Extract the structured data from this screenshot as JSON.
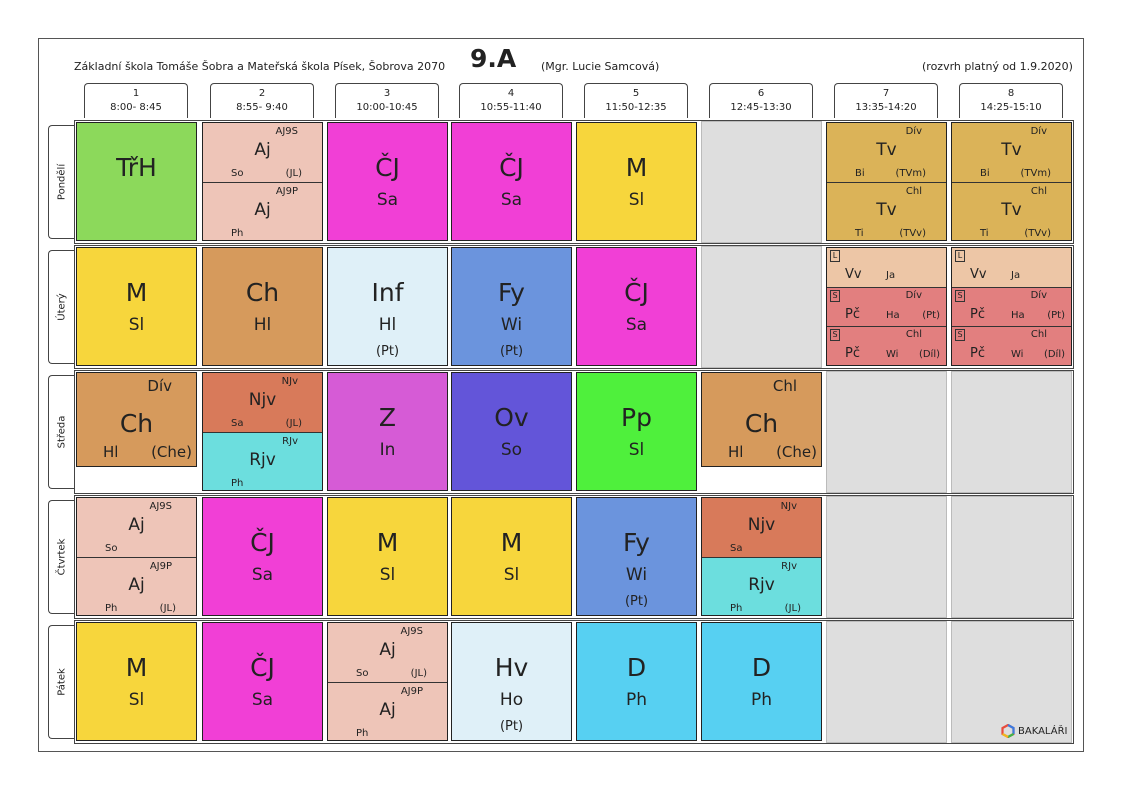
{
  "header": {
    "school": "Základní škola Tomáše Šobra a Mateřská škola Písek, Šobrova 2070",
    "class_name": "9.A",
    "teacher": "(Mgr. Lucie Samcová)",
    "valid": "(rozvrh platný od 1.9.2020)"
  },
  "periods": [
    {
      "num": "1",
      "time": "8:00- 8:45"
    },
    {
      "num": "2",
      "time": "8:55- 9:40"
    },
    {
      "num": "3",
      "time": "10:00-10:45"
    },
    {
      "num": "4",
      "time": "10:55-11:40"
    },
    {
      "num": "5",
      "time": "11:50-12:35"
    },
    {
      "num": "6",
      "time": "12:45-13:30"
    },
    {
      "num": "7",
      "time": "13:35-14:20"
    },
    {
      "num": "8",
      "time": "14:25-15:10"
    }
  ],
  "days": [
    "Pondělí",
    "Úterý",
    "Středa",
    "Čtvrtek",
    "Pátek"
  ],
  "colors": {
    "TrH": "#8cd95b",
    "Aj": "#eec5b8",
    "CJ": "#f13fd6",
    "M": "#f7d63c",
    "Tv": "#dbb358",
    "Ch": "#d69a5c",
    "Inf": "#dff0f8",
    "Fy": "#6b94dd",
    "Vv": "#edc6a6",
    "Pc": "#e27f7f",
    "Njv": "#d87a5a",
    "Rjv": "#6cdede",
    "Z": "#d65bd6",
    "Ov": "#6355d9",
    "Pp": "#4ff03c",
    "Hv": "#dff0f8",
    "D": "#57d0f2",
    "grey": "#dedede"
  },
  "timetable": [
    [
      {
        "type": "single",
        "subject": "TřH",
        "teacher": "",
        "room": "",
        "color": "TrH"
      },
      {
        "type": "split",
        "parts": [
          {
            "group": "AJ9S",
            "subject": "Aj",
            "teacher": "So",
            "room": "(JL)",
            "color": "Aj"
          },
          {
            "group": "AJ9P",
            "subject": "Aj",
            "teacher": "Ph",
            "room": "",
            "color": "Aj"
          }
        ]
      },
      {
        "type": "single",
        "subject": "ČJ",
        "teacher": "Sa",
        "room": "",
        "color": "CJ"
      },
      {
        "type": "single",
        "subject": "ČJ",
        "teacher": "Sa",
        "room": "",
        "color": "CJ"
      },
      {
        "type": "single",
        "subject": "M",
        "teacher": "Sl",
        "room": "",
        "color": "M"
      },
      {
        "type": "empty"
      },
      {
        "type": "split",
        "parts": [
          {
            "group": "Dív",
            "subject": "Tv",
            "teacher": "Bi",
            "room": "(TVm)",
            "color": "Tv"
          },
          {
            "group": "Chl",
            "subject": "Tv",
            "teacher": "Ti",
            "room": "(TVv)",
            "color": "Tv"
          }
        ]
      },
      {
        "type": "split",
        "parts": [
          {
            "group": "Dív",
            "subject": "Tv",
            "teacher": "Bi",
            "room": "(TVm)",
            "color": "Tv"
          },
          {
            "group": "Chl",
            "subject": "Tv",
            "teacher": "Ti",
            "room": "(TVv)",
            "color": "Tv"
          }
        ]
      }
    ],
    [
      {
        "type": "single",
        "subject": "M",
        "teacher": "Sl",
        "room": "",
        "color": "M"
      },
      {
        "type": "single",
        "subject": "Ch",
        "teacher": "Hl",
        "room": "",
        "color": "Ch"
      },
      {
        "type": "single",
        "subject": "Inf",
        "teacher": "Hl",
        "room": "(Pt)",
        "color": "Inf"
      },
      {
        "type": "single",
        "subject": "Fy",
        "teacher": "Wi",
        "room": "(Pt)",
        "color": "Fy"
      },
      {
        "type": "single",
        "subject": "ČJ",
        "teacher": "Sa",
        "room": "",
        "color": "CJ"
      },
      {
        "type": "empty"
      },
      {
        "type": "triple",
        "parts": [
          {
            "tag": "L",
            "group": "",
            "subject": "Vv",
            "teacher": "Ja",
            "room": "",
            "color": "Vv"
          },
          {
            "tag": "S",
            "group": "Dív",
            "subject": "Pč",
            "teacher": "Ha",
            "room": "(Pt)",
            "color": "Pc"
          },
          {
            "tag": "S",
            "group": "Chl",
            "subject": "Pč",
            "teacher": "Wi",
            "room": "(Díl)",
            "color": "Pc"
          }
        ]
      },
      {
        "type": "triple",
        "parts": [
          {
            "tag": "L",
            "group": "",
            "subject": "Vv",
            "teacher": "Ja",
            "room": "",
            "color": "Vv"
          },
          {
            "tag": "S",
            "group": "Dív",
            "subject": "Pč",
            "teacher": "Ha",
            "room": "(Pt)",
            "color": "Pc"
          },
          {
            "tag": "S",
            "group": "Chl",
            "subject": "Pč",
            "teacher": "Wi",
            "room": "(Díl)",
            "color": "Pc"
          }
        ]
      }
    ],
    [
      {
        "type": "groupsingle",
        "group": "Dív",
        "subject": "Ch",
        "teacher": "Hl",
        "room": "(Che)",
        "color": "Ch"
      },
      {
        "type": "split",
        "parts": [
          {
            "group": "NJv",
            "subject": "Njv",
            "teacher": "Sa",
            "room": "(JL)",
            "color": "Njv"
          },
          {
            "group": "RJv",
            "subject": "Rjv",
            "teacher": "Ph",
            "room": "",
            "color": "Rjv"
          }
        ]
      },
      {
        "type": "single",
        "subject": "Z",
        "teacher": "In",
        "room": "",
        "color": "Z"
      },
      {
        "type": "single",
        "subject": "Ov",
        "teacher": "So",
        "room": "",
        "color": "Ov"
      },
      {
        "type": "single",
        "subject": "Pp",
        "teacher": "Sl",
        "room": "",
        "color": "Pp"
      },
      {
        "type": "groupsingle",
        "group": "Chl",
        "subject": "Ch",
        "teacher": "Hl",
        "room": "(Che)",
        "color": "Ch"
      },
      {
        "type": "empty"
      },
      {
        "type": "empty"
      }
    ],
    [
      {
        "type": "split",
        "parts": [
          {
            "group": "AJ9S",
            "subject": "Aj",
            "teacher": "So",
            "room": "",
            "color": "Aj"
          },
          {
            "group": "AJ9P",
            "subject": "Aj",
            "teacher": "Ph",
            "room": "(JL)",
            "color": "Aj"
          }
        ]
      },
      {
        "type": "single",
        "subject": "ČJ",
        "teacher": "Sa",
        "room": "",
        "color": "CJ"
      },
      {
        "type": "single",
        "subject": "M",
        "teacher": "Sl",
        "room": "",
        "color": "M"
      },
      {
        "type": "single",
        "subject": "M",
        "teacher": "Sl",
        "room": "",
        "color": "M"
      },
      {
        "type": "single",
        "subject": "Fy",
        "teacher": "Wi",
        "room": "(Pt)",
        "color": "Fy"
      },
      {
        "type": "split",
        "parts": [
          {
            "group": "NJv",
            "subject": "Njv",
            "teacher": "Sa",
            "room": "",
            "color": "Njv"
          },
          {
            "group": "RJv",
            "subject": "Rjv",
            "teacher": "Ph",
            "room": "(JL)",
            "color": "Rjv"
          }
        ]
      },
      {
        "type": "empty"
      },
      {
        "type": "empty"
      }
    ],
    [
      {
        "type": "single",
        "subject": "M",
        "teacher": "Sl",
        "room": "",
        "color": "M"
      },
      {
        "type": "single",
        "subject": "ČJ",
        "teacher": "Sa",
        "room": "",
        "color": "CJ"
      },
      {
        "type": "split",
        "parts": [
          {
            "group": "AJ9S",
            "subject": "Aj",
            "teacher": "So",
            "room": "(JL)",
            "color": "Aj"
          },
          {
            "group": "AJ9P",
            "subject": "Aj",
            "teacher": "Ph",
            "room": "",
            "color": "Aj"
          }
        ]
      },
      {
        "type": "single",
        "subject": "Hv",
        "teacher": "Ho",
        "room": "(Pt)",
        "color": "Hv"
      },
      {
        "type": "single",
        "subject": "D",
        "teacher": "Ph",
        "room": "",
        "color": "D"
      },
      {
        "type": "single",
        "subject": "D",
        "teacher": "Ph",
        "room": "",
        "color": "D"
      },
      {
        "type": "empty"
      },
      {
        "type": "empty"
      }
    ]
  ],
  "footer": {
    "logo_text": "BAKALÁŘI"
  }
}
